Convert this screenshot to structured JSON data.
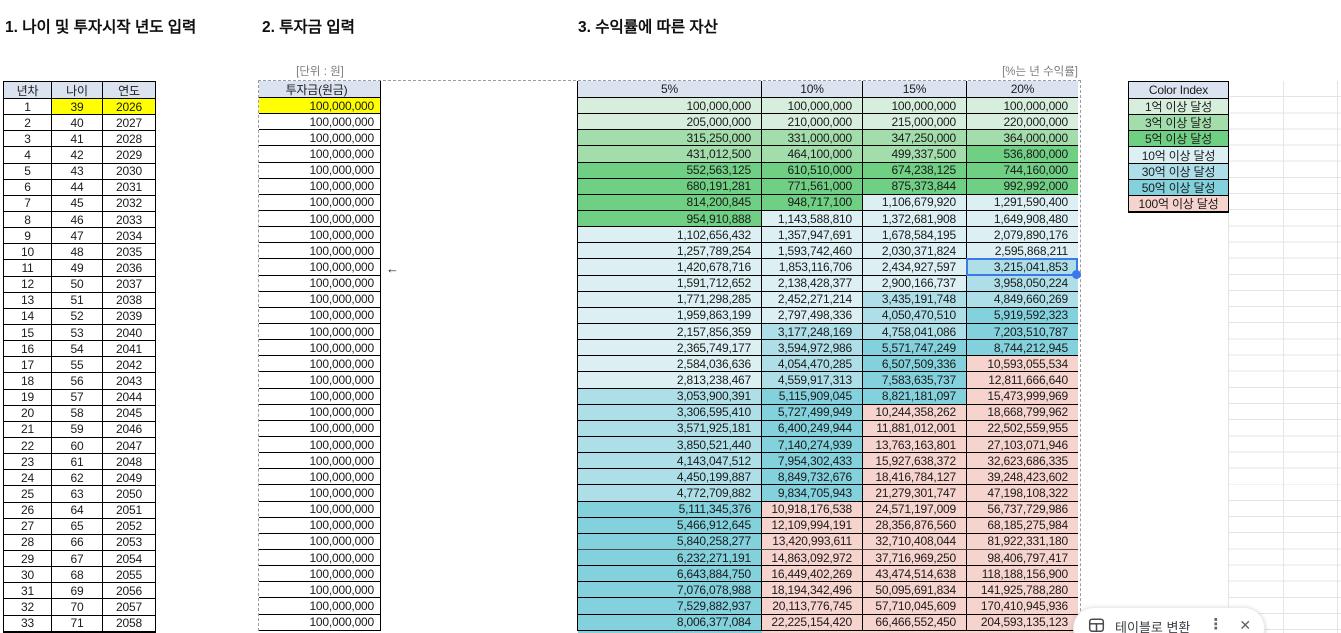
{
  "titles": {
    "t1": "1. 나이 및 투자시작 년도 입력",
    "t2": "2. 투자금 입력",
    "t3": "3. 수익률에 따른 자산"
  },
  "notes": {
    "unit": "[단위 : 원]",
    "rate": "[%는 년 수익률]"
  },
  "age_table": {
    "headers": [
      "년차",
      "나이",
      "연도"
    ],
    "rows": [
      [
        1,
        39,
        2026
      ],
      [
        2,
        40,
        2027
      ],
      [
        3,
        41,
        2028
      ],
      [
        4,
        42,
        2029
      ],
      [
        5,
        43,
        2030
      ],
      [
        6,
        44,
        2031
      ],
      [
        7,
        45,
        2032
      ],
      [
        8,
        46,
        2033
      ],
      [
        9,
        47,
        2034
      ],
      [
        10,
        48,
        2035
      ],
      [
        11,
        49,
        2036
      ],
      [
        12,
        50,
        2037
      ],
      [
        13,
        51,
        2038
      ],
      [
        14,
        52,
        2039
      ],
      [
        15,
        53,
        2040
      ],
      [
        16,
        54,
        2041
      ],
      [
        17,
        55,
        2042
      ],
      [
        18,
        56,
        2043
      ],
      [
        19,
        57,
        2044
      ],
      [
        20,
        58,
        2045
      ],
      [
        21,
        59,
        2046
      ],
      [
        22,
        60,
        2047
      ],
      [
        23,
        61,
        2048
      ],
      [
        24,
        62,
        2049
      ],
      [
        25,
        63,
        2050
      ],
      [
        26,
        64,
        2051
      ],
      [
        27,
        65,
        2052
      ],
      [
        28,
        66,
        2053
      ],
      [
        29,
        67,
        2054
      ],
      [
        30,
        68,
        2055
      ],
      [
        31,
        69,
        2056
      ],
      [
        32,
        70,
        2057
      ],
      [
        33,
        71,
        2058
      ]
    ],
    "yellow_cells": {
      "row_index": 0,
      "col_indexes": [
        1,
        2
      ]
    }
  },
  "invest_table": {
    "header": "투자금(원금)",
    "values": [
      "100,000,000",
      "100,000,000",
      "100,000,000",
      "100,000,000",
      "100,000,000",
      "100,000,000",
      "100,000,000",
      "100,000,000",
      "100,000,000",
      "100,000,000",
      "100,000,000",
      "100,000,000",
      "100,000,000",
      "100,000,000",
      "100,000,000",
      "100,000,000",
      "100,000,000",
      "100,000,000",
      "100,000,000",
      "100,000,000",
      "100,000,000",
      "100,000,000",
      "100,000,000",
      "100,000,000",
      "100,000,000",
      "100,000,000",
      "100,000,000",
      "100,000,000",
      "100,000,000",
      "100,000,000",
      "100,000,000",
      "100,000,000",
      "100,000,000"
    ],
    "yellow_row_index": 0,
    "arrow": "←",
    "arrow_row": 11
  },
  "returns_table": {
    "headers": [
      "5%",
      "10%",
      "15%",
      "20%"
    ],
    "rows": [
      [
        "100,000,000",
        "100,000,000",
        "100,000,000",
        "100,000,000"
      ],
      [
        "205,000,000",
        "210,000,000",
        "215,000,000",
        "220,000,000"
      ],
      [
        "315,250,000",
        "331,000,000",
        "347,250,000",
        "364,000,000"
      ],
      [
        "431,012,500",
        "464,100,000",
        "499,337,500",
        "536,800,000"
      ],
      [
        "552,563,125",
        "610,510,000",
        "674,238,125",
        "744,160,000"
      ],
      [
        "680,191,281",
        "771,561,000",
        "875,373,844",
        "992,992,000"
      ],
      [
        "814,200,845",
        "948,717,100",
        "1,106,679,920",
        "1,291,590,400"
      ],
      [
        "954,910,888",
        "1,143,588,810",
        "1,372,681,908",
        "1,649,908,480"
      ],
      [
        "1,102,656,432",
        "1,357,947,691",
        "1,678,584,195",
        "2,079,890,176"
      ],
      [
        "1,257,789,254",
        "1,593,742,460",
        "2,030,371,824",
        "2,595,868,211"
      ],
      [
        "1,420,678,716",
        "1,853,116,706",
        "2,434,927,597",
        "3,215,041,853"
      ],
      [
        "1,591,712,652",
        "2,138,428,377",
        "2,900,166,737",
        "3,958,050,224"
      ],
      [
        "1,771,298,285",
        "2,452,271,214",
        "3,435,191,748",
        "4,849,660,269"
      ],
      [
        "1,959,863,199",
        "2,797,498,336",
        "4,050,470,510",
        "5,919,592,323"
      ],
      [
        "2,157,856,359",
        "3,177,248,169",
        "4,758,041,086",
        "7,203,510,787"
      ],
      [
        "2,365,749,177",
        "3,594,972,986",
        "5,571,747,249",
        "8,744,212,945"
      ],
      [
        "2,584,036,636",
        "4,054,470,285",
        "6,507,509,336",
        "10,593,055,534"
      ],
      [
        "2,813,238,467",
        "4,559,917,313",
        "7,583,635,737",
        "12,811,666,640"
      ],
      [
        "3,053,900,391",
        "5,115,909,045",
        "8,821,181,097",
        "15,473,999,969"
      ],
      [
        "3,306,595,410",
        "5,727,499,949",
        "10,244,358,262",
        "18,668,799,962"
      ],
      [
        "3,571,925,181",
        "6,400,249,944",
        "11,881,012,001",
        "22,502,559,955"
      ],
      [
        "3,850,521,440",
        "7,140,274,939",
        "13,763,163,801",
        "27,103,071,946"
      ],
      [
        "4,143,047,512",
        "7,954,302,433",
        "15,927,638,372",
        "32,623,686,335"
      ],
      [
        "4,450,199,887",
        "8,849,732,676",
        "18,416,784,127",
        "39,248,423,602"
      ],
      [
        "4,772,709,882",
        "9,834,705,943",
        "21,279,301,747",
        "47,198,108,322"
      ],
      [
        "5,111,345,376",
        "10,918,176,538",
        "24,571,197,009",
        "56,737,729,986"
      ],
      [
        "5,466,912,645",
        "12,109,994,191",
        "28,356,876,560",
        "68,185,275,984"
      ],
      [
        "5,840,258,277",
        "13,420,993,611",
        "32,710,408,044",
        "81,922,331,180"
      ],
      [
        "6,232,271,191",
        "14,863,092,972",
        "37,716,969,250",
        "98,406,797,417"
      ],
      [
        "6,643,884,750",
        "16,449,402,269",
        "43,474,514,638",
        "118,188,156,900"
      ],
      [
        "7,076,078,988",
        "18,194,342,496",
        "50,095,691,834",
        "141,925,788,280"
      ],
      [
        "7,529,882,937",
        "20,113,776,745",
        "57,710,045,609",
        "170,410,945,936"
      ],
      [
        "8,006,377,084",
        "22,225,154,420",
        "66,466,552,450",
        "204,593,135,123"
      ]
    ],
    "page_break_after_row": 28,
    "partial_next_row_colors": [
      "#82d1dd",
      "#f7d3ce",
      "#f7d3ce",
      "#f7d3ce"
    ]
  },
  "legend": {
    "header": "Color Index",
    "items": [
      {
        "label": "1억 이상 달성",
        "min": 100000000,
        "color": "#d8eedd"
      },
      {
        "label": "3억 이상 달성",
        "min": 300000000,
        "color": "#a2ddab"
      },
      {
        "label": "5억 이상 달성",
        "min": 500000000,
        "color": "#6fcf83"
      },
      {
        "label": "10억 이상 달성",
        "min": 1000000000,
        "color": "#dcf0f4"
      },
      {
        "label": "30억 이상 달성",
        "min": 3000000000,
        "color": "#aedfe8"
      },
      {
        "label": "50억 이상 달성",
        "min": 5000000000,
        "color": "#82d1dd"
      },
      {
        "label": "100억 이상 달성",
        "min": 10000000000,
        "color": "#f7d3ce"
      }
    ]
  },
  "selection": {
    "row": 11,
    "column": "20%",
    "value": "3,215,041,853",
    "color": "#3b78e8"
  },
  "popup": {
    "label": "테이블로 변환",
    "more_icon": "⋮",
    "close_icon": "✕"
  },
  "colors": {
    "header_fill": "#dbe3f1",
    "highlight_yellow": "#ffff00",
    "selection_blue": "#3b78e8",
    "note_gray": "#7d7d7d"
  }
}
